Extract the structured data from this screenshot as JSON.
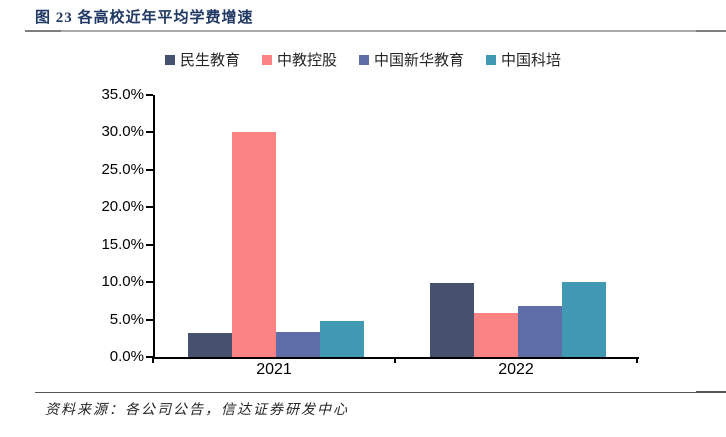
{
  "header": {
    "title": "图 23 各高校近年平均学费增速"
  },
  "chart_data": {
    "type": "bar",
    "categories": [
      "2021",
      "2022"
    ],
    "series": [
      {
        "name": "民生教育",
        "color": "#465170",
        "values": [
          3.2,
          9.9
        ]
      },
      {
        "name": "中教控股",
        "color": "#FC8383",
        "values": [
          30.0,
          5.9
        ]
      },
      {
        "name": "中国新华教育",
        "color": "#5F6EA9",
        "values": [
          3.3,
          6.8
        ]
      },
      {
        "name": "中国科培",
        "color": "#4299B3",
        "values": [
          4.8,
          10.0
        ]
      }
    ],
    "ylim": [
      0,
      35
    ],
    "ytick_step": 5,
    "ytick_labels": [
      "0.0%",
      "5.0%",
      "10.0%",
      "15.0%",
      "20.0%",
      "25.0%",
      "30.0%",
      "35.0%"
    ],
    "legend_position": "top",
    "grid": false,
    "axis_color": "#000000"
  },
  "footer": {
    "source": "资料来源：各公司公告，信达证券研发中心"
  }
}
